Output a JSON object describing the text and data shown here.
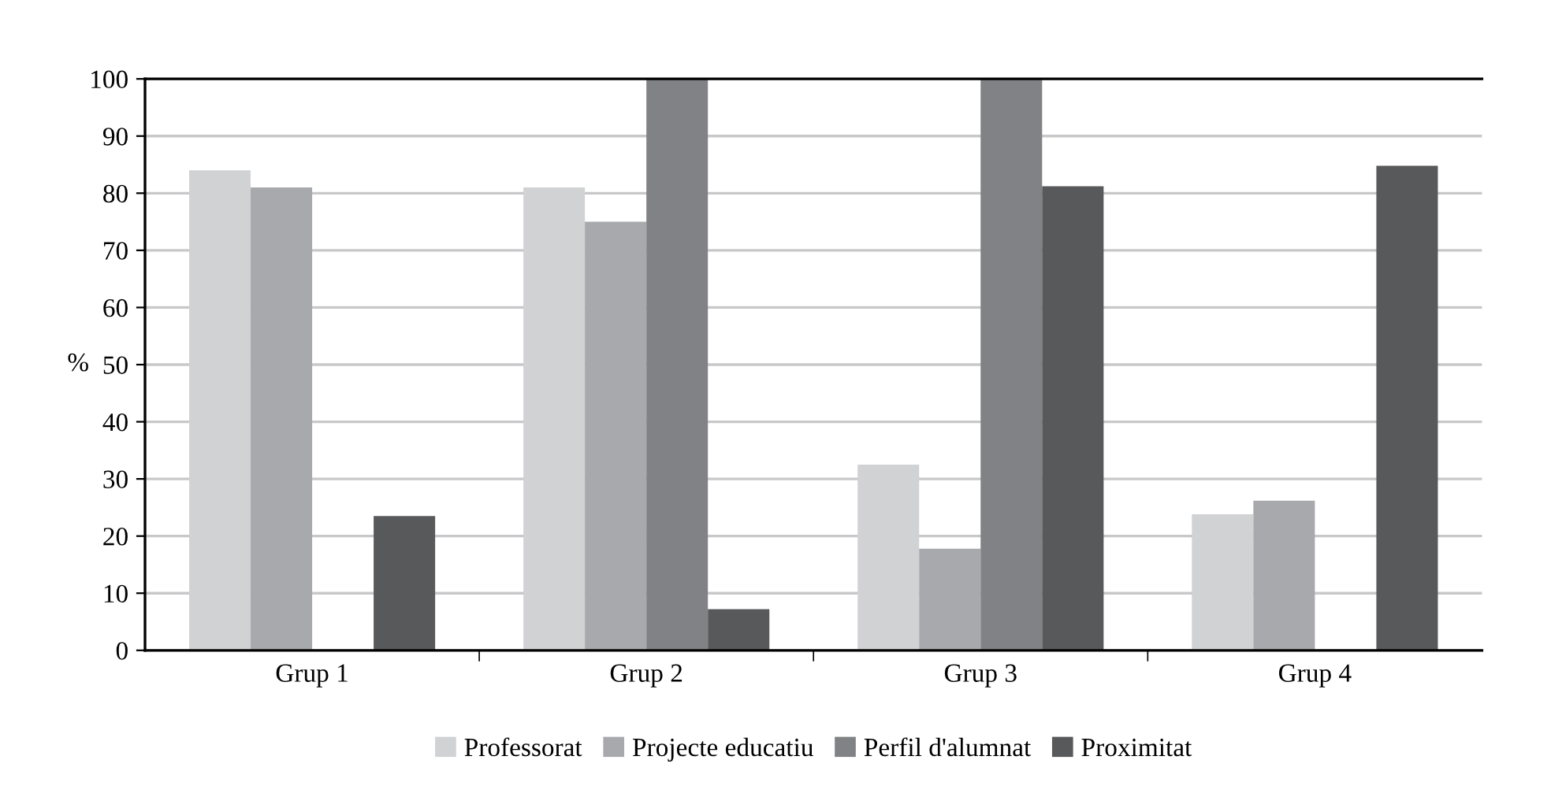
{
  "chart_data": {
    "type": "bar",
    "ylabel": "%",
    "categories": [
      "Grup 1",
      "Grup 2",
      "Grup 3",
      "Grup 4"
    ],
    "series": [
      {
        "name": "Professorat",
        "color": "#d1d2d4",
        "values": [
          84,
          81,
          32.5,
          23.8
        ]
      },
      {
        "name": "Projecte educatiu",
        "color": "#a8a9ad",
        "values": [
          81,
          75,
          17.8,
          26.2
        ]
      },
      {
        "name": "Perfil d'alumnat",
        "color": "#818285",
        "values": [
          null,
          100,
          100,
          null
        ]
      },
      {
        "name": "Proximitat",
        "color": "#58595b",
        "values": [
          23.5,
          7.2,
          81.2,
          84.8
        ]
      }
    ],
    "ylim": [
      0,
      100
    ],
    "yticks": [
      0,
      10,
      20,
      30,
      40,
      50,
      60,
      70,
      80,
      90,
      100
    ],
    "grid": "y",
    "legend": "bottom"
  }
}
